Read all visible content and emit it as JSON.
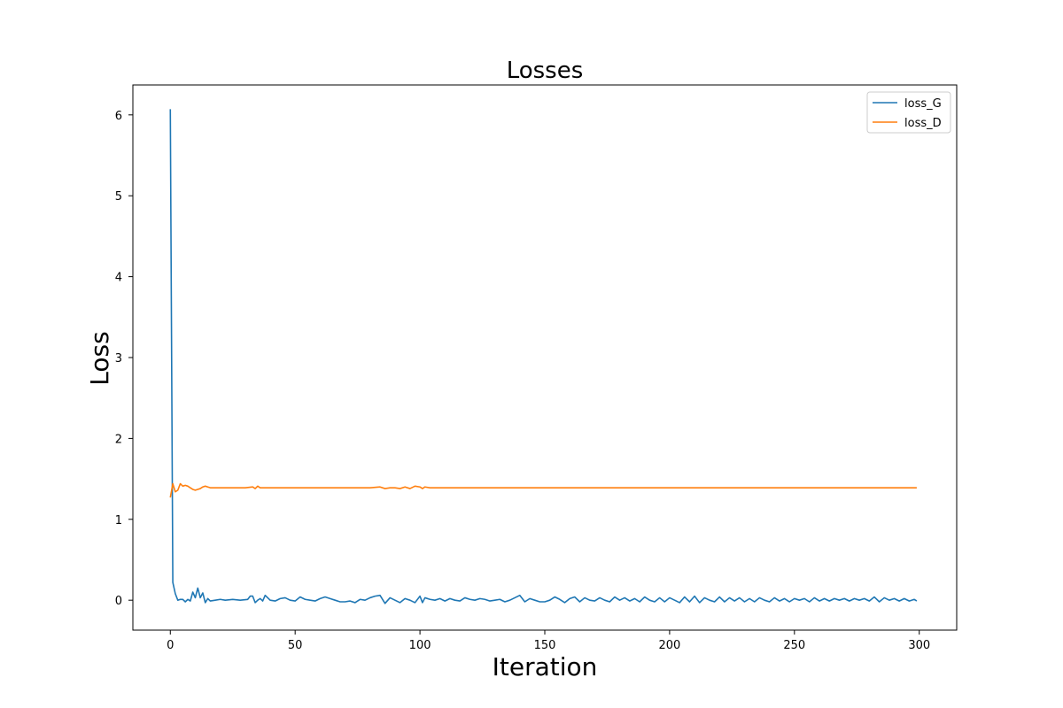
{
  "chart_data": {
    "type": "line",
    "title": "Losses",
    "xlabel": "Iteration",
    "ylabel": "Loss",
    "xlim": [
      -15,
      315
    ],
    "ylim": [
      -0.37,
      6.37
    ],
    "xticks": [
      0,
      50,
      100,
      150,
      200,
      250,
      300
    ],
    "yticks": [
      0,
      1,
      2,
      3,
      4,
      5,
      6
    ],
    "grid": false,
    "legend": "top-right",
    "series": [
      {
        "name": "loss_G",
        "color": "#1f77b4",
        "x": [
          0,
          1,
          2,
          3,
          4,
          5,
          6,
          7,
          8,
          9,
          10,
          11,
          12,
          13,
          14,
          15,
          16,
          18,
          20,
          22,
          25,
          28,
          31,
          32,
          33,
          34,
          35,
          36,
          37,
          38,
          40,
          42,
          44,
          46,
          48,
          50,
          52,
          54,
          56,
          58,
          60,
          62,
          64,
          66,
          68,
          70,
          72,
          74,
          76,
          78,
          80,
          82,
          84,
          86,
          88,
          90,
          92,
          94,
          96,
          98,
          100,
          101,
          102,
          104,
          106,
          108,
          110,
          112,
          114,
          116,
          118,
          120,
          122,
          124,
          126,
          128,
          130,
          132,
          134,
          136,
          138,
          140,
          142,
          144,
          146,
          148,
          150,
          152,
          154,
          156,
          158,
          160,
          162,
          164,
          166,
          168,
          170,
          172,
          174,
          176,
          178,
          180,
          182,
          184,
          186,
          188,
          190,
          192,
          194,
          196,
          198,
          200,
          202,
          204,
          206,
          208,
          210,
          212,
          214,
          216,
          218,
          220,
          222,
          224,
          226,
          228,
          230,
          232,
          234,
          236,
          238,
          240,
          242,
          244,
          246,
          248,
          250,
          252,
          254,
          256,
          258,
          260,
          262,
          264,
          266,
          268,
          270,
          272,
          274,
          276,
          278,
          280,
          282,
          284,
          286,
          288,
          290,
          292,
          294,
          296,
          298,
          299
        ],
        "values": [
          6.07,
          0.22,
          0.08,
          0.0,
          0.01,
          0.01,
          -0.02,
          0.01,
          -0.01,
          0.1,
          0.03,
          0.15,
          0.03,
          0.09,
          -0.03,
          0.02,
          -0.01,
          0.0,
          0.01,
          0.0,
          0.01,
          0.0,
          0.01,
          0.05,
          0.05,
          -0.03,
          0.0,
          0.02,
          -0.01,
          0.06,
          0.0,
          -0.01,
          0.02,
          0.03,
          0.0,
          -0.01,
          0.04,
          0.01,
          0.0,
          -0.01,
          0.02,
          0.04,
          0.02,
          0.0,
          -0.02,
          -0.02,
          -0.01,
          -0.03,
          0.01,
          0.0,
          0.03,
          0.05,
          0.06,
          -0.04,
          0.03,
          0.0,
          -0.03,
          0.02,
          0.0,
          -0.03,
          0.05,
          -0.03,
          0.03,
          0.01,
          0.0,
          0.02,
          -0.01,
          0.02,
          0.0,
          -0.01,
          0.03,
          0.01,
          0.0,
          0.02,
          0.01,
          -0.01,
          0.0,
          0.01,
          -0.02,
          0.0,
          0.03,
          0.06,
          -0.02,
          0.02,
          0.0,
          -0.02,
          -0.02,
          0.0,
          0.04,
          0.01,
          -0.03,
          0.02,
          0.04,
          -0.02,
          0.03,
          0.0,
          -0.01,
          0.03,
          0.0,
          -0.02,
          0.04,
          0.0,
          0.03,
          -0.01,
          0.02,
          -0.02,
          0.04,
          0.0,
          -0.02,
          0.03,
          -0.02,
          0.03,
          0.0,
          -0.03,
          0.04,
          -0.02,
          0.05,
          -0.03,
          0.03,
          0.0,
          -0.02,
          0.04,
          -0.02,
          0.03,
          -0.01,
          0.03,
          -0.02,
          0.02,
          -0.02,
          0.03,
          0.0,
          -0.02,
          0.03,
          -0.01,
          0.02,
          -0.02,
          0.02,
          0.0,
          0.02,
          -0.02,
          0.03,
          -0.01,
          0.02,
          -0.01,
          0.02,
          0.0,
          0.02,
          -0.01,
          0.02,
          0.0,
          0.02,
          -0.01,
          0.04,
          -0.02,
          0.03,
          0.0,
          0.02,
          -0.01,
          0.02,
          -0.01,
          0.01,
          -0.01
        ]
      },
      {
        "name": "loss_D",
        "color": "#ff7f0e",
        "x": [
          0,
          1,
          2,
          3,
          4,
          5,
          6,
          7,
          8,
          9,
          10,
          11,
          12,
          13,
          14,
          15,
          16,
          18,
          20,
          25,
          30,
          33,
          34,
          35,
          36,
          40,
          50,
          60,
          70,
          80,
          84,
          86,
          88,
          90,
          92,
          94,
          96,
          98,
          100,
          101,
          102,
          104,
          110,
          120,
          140,
          160,
          180,
          200,
          220,
          240,
          260,
          280,
          299
        ],
        "values": [
          1.27,
          1.44,
          1.34,
          1.36,
          1.44,
          1.41,
          1.42,
          1.41,
          1.39,
          1.37,
          1.36,
          1.37,
          1.38,
          1.4,
          1.41,
          1.4,
          1.39,
          1.39,
          1.39,
          1.39,
          1.39,
          1.4,
          1.38,
          1.41,
          1.39,
          1.39,
          1.39,
          1.39,
          1.39,
          1.39,
          1.4,
          1.38,
          1.39,
          1.39,
          1.38,
          1.4,
          1.38,
          1.41,
          1.4,
          1.38,
          1.4,
          1.39,
          1.39,
          1.39,
          1.39,
          1.39,
          1.39,
          1.39,
          1.39,
          1.39,
          1.39,
          1.39,
          1.39
        ]
      }
    ]
  }
}
